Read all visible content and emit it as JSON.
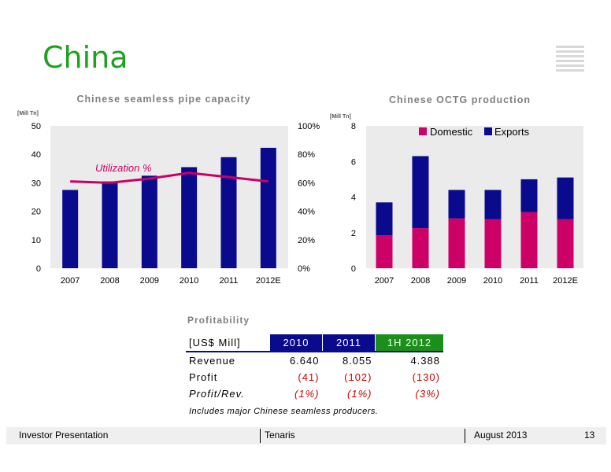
{
  "page": {
    "title": "China"
  },
  "left_chart": {
    "title": "Chinese seamless pipe capacity",
    "unit": "[Mill Tn]",
    "annotation": "Utilization %"
  },
  "right_chart": {
    "title": "Chinese OCTG production",
    "unit": "[Mill Tn]"
  },
  "chart_data": [
    {
      "type": "bar",
      "title": "Chinese seamless pipe capacity",
      "ylabel": "[Mill Tn]",
      "categories": [
        "2007",
        "2008",
        "2009",
        "2010",
        "2011",
        "2012E"
      ],
      "ylim": [
        0,
        50
      ],
      "yticks": [
        "0",
        "10",
        "20",
        "30",
        "40",
        "50"
      ],
      "y2lim": [
        0,
        100
      ],
      "y2ticks": [
        "0%",
        "20%",
        "40%",
        "60%",
        "80%",
        "100%"
      ],
      "series": [
        {
          "values": [
            27.5,
            30.5,
            32.5,
            35.5,
            39,
            42.3
          ],
          "color": "#0a0a8c"
        },
        {
          "name": "Utilization %",
          "type": "line",
          "axis": "right",
          "values": [
            61,
            60,
            63,
            67,
            64,
            61
          ],
          "color": "#cc0066"
        }
      ],
      "grid": false,
      "background": "#ebebeb"
    },
    {
      "type": "bar",
      "stacked": true,
      "title": "Chinese OCTG production",
      "ylabel": "[Mill Tn]",
      "categories": [
        "2007",
        "2008",
        "2009",
        "2010",
        "2011",
        "2012E"
      ],
      "ylim": [
        0,
        8
      ],
      "yticks": [
        "0",
        "2",
        "4",
        "6",
        "8"
      ],
      "series": [
        {
          "name": "Domestic",
          "values": [
            1.85,
            2.25,
            2.8,
            2.75,
            3.15,
            2.75
          ],
          "color": "#cc0066"
        },
        {
          "name": "Exports",
          "values": [
            1.85,
            4.05,
            1.6,
            1.65,
            1.85,
            2.35
          ],
          "color": "#0a0a8c"
        }
      ],
      "legend": "top-center",
      "grid": false,
      "background": "#ebebeb"
    }
  ],
  "profitability": {
    "title": "Profitability",
    "header": [
      "[US$ Mill]",
      "2010",
      "2011",
      "1H 2012"
    ],
    "rows": [
      {
        "label": "Revenue",
        "values": [
          "6.640",
          "8.055",
          "4.388"
        ]
      },
      {
        "label": "Profit",
        "values": [
          "(41)",
          "(102)",
          "(130)"
        ]
      },
      {
        "label": "Profit/Rev.",
        "values": [
          "(1%)",
          "(1%)",
          "(3%)"
        ]
      }
    ],
    "note": "Includes major Chinese seamless producers."
  },
  "footer": {
    "left": "Investor Presentation",
    "center": "Tenaris",
    "date": "August 2013",
    "page": "13"
  }
}
